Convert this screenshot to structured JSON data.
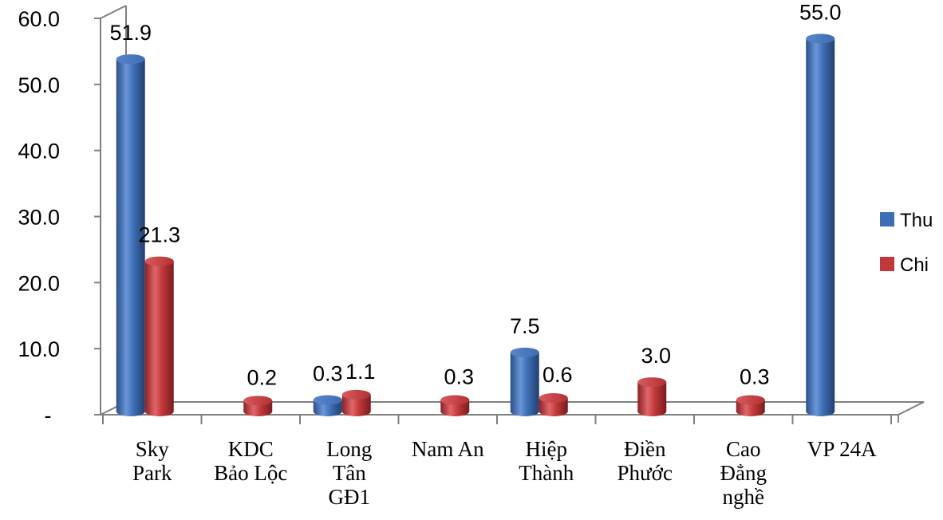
{
  "chart_data": {
    "type": "bar",
    "title": "",
    "xlabel": "",
    "ylabel": "",
    "ylim": [
      0,
      60
    ],
    "yticks": [
      "-",
      "10.0",
      "20.0",
      "30.0",
      "40.0",
      "50.0",
      "60.0"
    ],
    "grid": false,
    "legend_position": "right",
    "categories": [
      [
        "Sky",
        "Park"
      ],
      [
        "KDC",
        "Bảo Lộc"
      ],
      [
        "Long",
        "Tân",
        "GĐ1"
      ],
      [
        "Nam An"
      ],
      [
        "Hiệp",
        "Thành"
      ],
      [
        "Điền",
        "Phước"
      ],
      [
        "Cao",
        "Đẳng",
        "nghề"
      ],
      [
        "VP 24A"
      ]
    ],
    "series": [
      {
        "name": "Thu",
        "color": "#3d6db4",
        "values": [
          51.9,
          0,
          0.3,
          0,
          7.5,
          0,
          0,
          55.0
        ],
        "labels": [
          "51.9",
          "",
          "0.3",
          "",
          "7.5",
          "",
          "",
          "55.0"
        ]
      },
      {
        "name": "Chi",
        "color": "#c0383a",
        "values": [
          21.3,
          0.2,
          1.1,
          0.3,
          0.6,
          3.0,
          0.3,
          0
        ],
        "labels": [
          "21.3",
          "0.2",
          "1.1",
          "0.3",
          "0.6",
          "3.0",
          "0.3",
          ""
        ]
      }
    ]
  }
}
